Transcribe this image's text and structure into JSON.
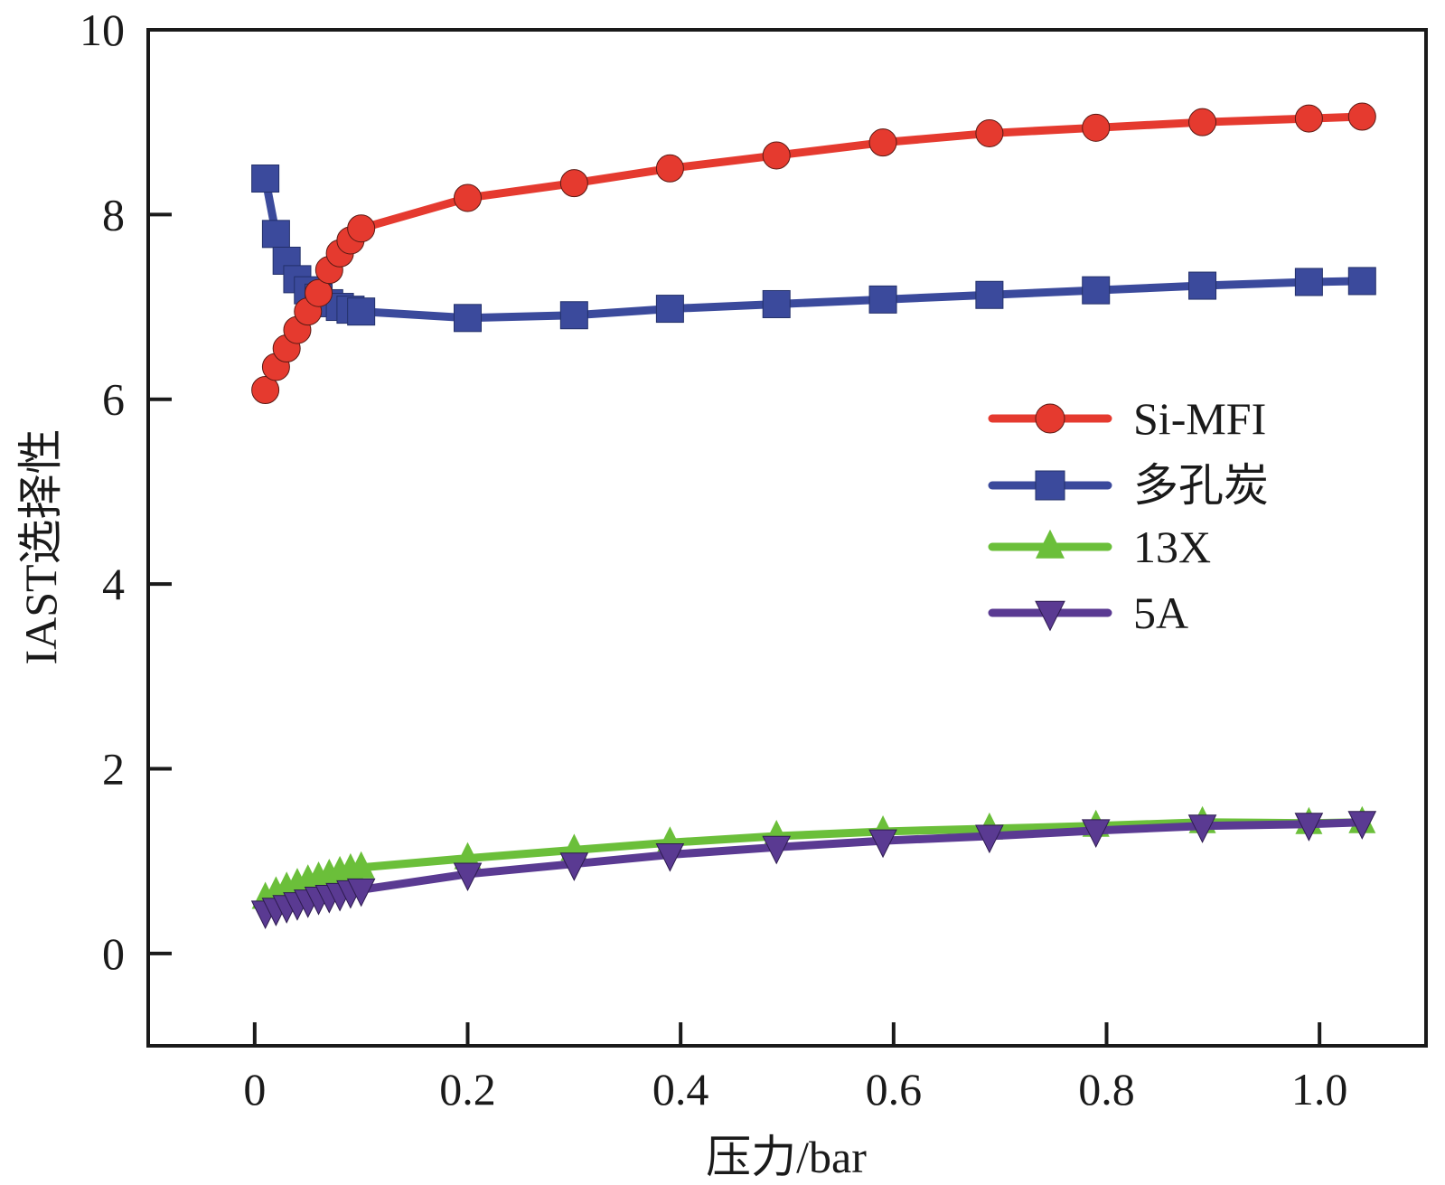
{
  "chart_data": {
    "type": "line",
    "title": "",
    "xlabel": "压力/bar",
    "ylabel": "IAST选择性",
    "xlim": [
      -0.1,
      1.1
    ],
    "ylim": [
      -1,
      10
    ],
    "xticks": [
      0,
      0.2,
      0.4,
      0.6,
      0.8,
      1.0
    ],
    "xtick_labels": [
      "0",
      "0.2",
      "0.4",
      "0.6",
      "0.8",
      "1.0"
    ],
    "yticks": [
      0,
      2,
      4,
      6,
      8,
      10
    ],
    "ytick_labels": [
      "0",
      "2",
      "4",
      "6",
      "8",
      "10"
    ],
    "grid": false,
    "legend_position": "center-right",
    "x": [
      0.01,
      0.02,
      0.03,
      0.04,
      0.05,
      0.06,
      0.07,
      0.08,
      0.09,
      0.1,
      0.2,
      0.3,
      0.39,
      0.49,
      0.59,
      0.69,
      0.79,
      0.89,
      0.99,
      1.04
    ],
    "series": [
      {
        "name": "Si-MFI",
        "marker": "circle",
        "color": "#e53a2f",
        "values": [
          6.1,
          6.35,
          6.55,
          6.75,
          6.95,
          7.15,
          7.4,
          7.58,
          7.72,
          7.85,
          8.18,
          8.34,
          8.5,
          8.64,
          8.78,
          8.88,
          8.94,
          9.0,
          9.04,
          9.06
        ]
      },
      {
        "name": "多孔炭",
        "marker": "square",
        "color": "#3b4a9c",
        "values": [
          8.39,
          7.79,
          7.5,
          7.3,
          7.18,
          7.1,
          7.04,
          7.0,
          6.97,
          6.95,
          6.88,
          6.91,
          6.98,
          7.03,
          7.08,
          7.13,
          7.18,
          7.23,
          7.27,
          7.28
        ]
      },
      {
        "name": "13X",
        "marker": "triangle-up",
        "color": "#6bbf3a",
        "values": [
          0.6,
          0.66,
          0.71,
          0.75,
          0.79,
          0.82,
          0.85,
          0.88,
          0.91,
          0.93,
          1.03,
          1.12,
          1.2,
          1.27,
          1.32,
          1.35,
          1.38,
          1.42,
          1.41,
          1.42
        ]
      },
      {
        "name": "5A",
        "marker": "triangle-down",
        "color": "#5a3a92",
        "values": [
          0.45,
          0.48,
          0.51,
          0.54,
          0.57,
          0.6,
          0.62,
          0.64,
          0.67,
          0.69,
          0.86,
          0.97,
          1.07,
          1.15,
          1.22,
          1.27,
          1.33,
          1.38,
          1.4,
          1.42
        ]
      }
    ]
  }
}
